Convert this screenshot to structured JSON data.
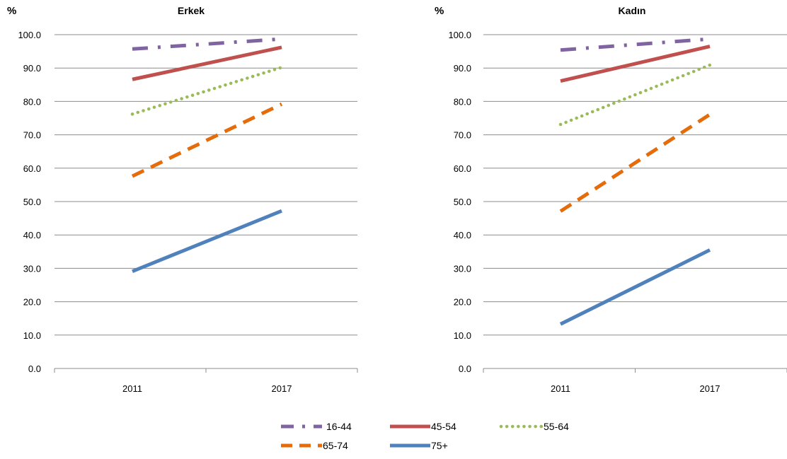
{
  "colors": {
    "16-44": "#8064A2",
    "45-54": "#C0504D",
    "55-64": "#9BBB59",
    "65-74": "#E46C0A",
    "75+": "#4F81BD",
    "grid": "#8c8c8c"
  },
  "legend": [
    {
      "name": "16-44",
      "style": "dash-dot"
    },
    {
      "name": "45-54",
      "style": "solid"
    },
    {
      "name": "55-64",
      "style": "dotted"
    },
    {
      "name": "65-74",
      "style": "dashed"
    },
    {
      "name": "75+",
      "style": "solid"
    }
  ],
  "chart_data": [
    {
      "type": "line",
      "title": "Erkek",
      "ylabel": "%",
      "xlabel": "",
      "categories": [
        "2011",
        "2017"
      ],
      "ylim": [
        0,
        100
      ],
      "yticks": [
        "0.0",
        "10.0",
        "20.0",
        "30.0",
        "40.0",
        "50.0",
        "60.0",
        "70.0",
        "80.0",
        "90.0",
        "100.0"
      ],
      "grid": true,
      "legend_position": "bottom",
      "series": [
        {
          "name": "16-44",
          "values": [
            95.7,
            98.7
          ]
        },
        {
          "name": "45-54",
          "values": [
            86.6,
            96.2
          ]
        },
        {
          "name": "55-64",
          "values": [
            76.2,
            90.2
          ]
        },
        {
          "name": "65-74",
          "values": [
            57.6,
            79.2
          ]
        },
        {
          "name": "75+",
          "values": [
            29.1,
            47.2
          ]
        }
      ]
    },
    {
      "type": "line",
      "title": "Kadın",
      "ylabel": "%",
      "xlabel": "",
      "categories": [
        "2011",
        "2017"
      ],
      "ylim": [
        0,
        100
      ],
      "yticks": [
        "0.0",
        "10.0",
        "20.0",
        "30.0",
        "40.0",
        "50.0",
        "60.0",
        "70.0",
        "80.0",
        "90.0",
        "100.0"
      ],
      "grid": true,
      "legend_position": "bottom",
      "series": [
        {
          "name": "16-44",
          "values": [
            95.4,
            98.7
          ]
        },
        {
          "name": "45-54",
          "values": [
            86.1,
            96.5
          ]
        },
        {
          "name": "55-64",
          "values": [
            73.1,
            90.9
          ]
        },
        {
          "name": "65-74",
          "values": [
            47.1,
            76.1
          ]
        },
        {
          "name": "75+",
          "values": [
            13.3,
            35.5
          ]
        }
      ]
    }
  ]
}
